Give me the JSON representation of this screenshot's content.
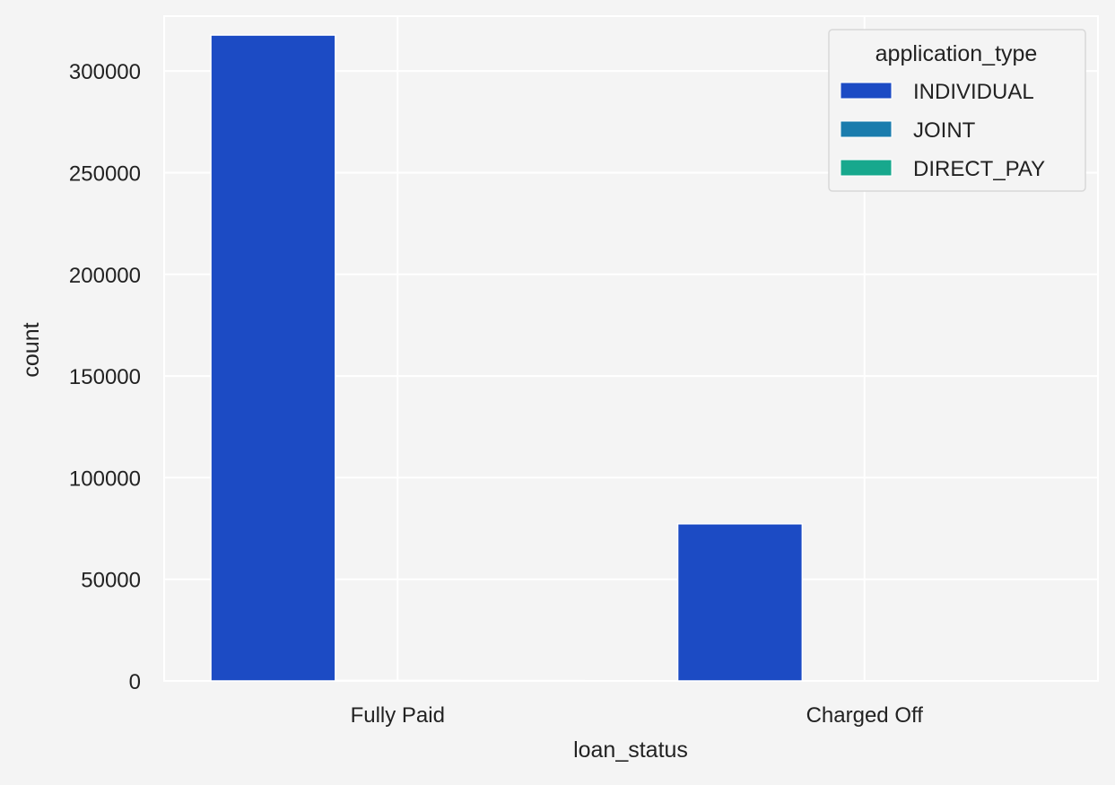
{
  "chart_data": {
    "type": "bar",
    "xlabel": "loan_status",
    "ylabel": "count",
    "categories": [
      "Fully Paid",
      "Charged Off"
    ],
    "ylim": [
      0,
      327000
    ],
    "yticks": [
      0,
      50000,
      100000,
      150000,
      200000,
      250000,
      300000
    ],
    "grid": true,
    "legend": {
      "title": "application_type",
      "placement": "top-right"
    },
    "series": [
      {
        "name": "INDIVIDUAL",
        "color": "#1c4bc4",
        "values": [
          317700,
          77300
        ]
      },
      {
        "name": "JOINT",
        "color": "#1a7cad",
        "values": [
          300,
          120
        ]
      },
      {
        "name": "DIRECT_PAY",
        "color": "#17a88d",
        "values": [
          200,
          80
        ]
      }
    ]
  }
}
